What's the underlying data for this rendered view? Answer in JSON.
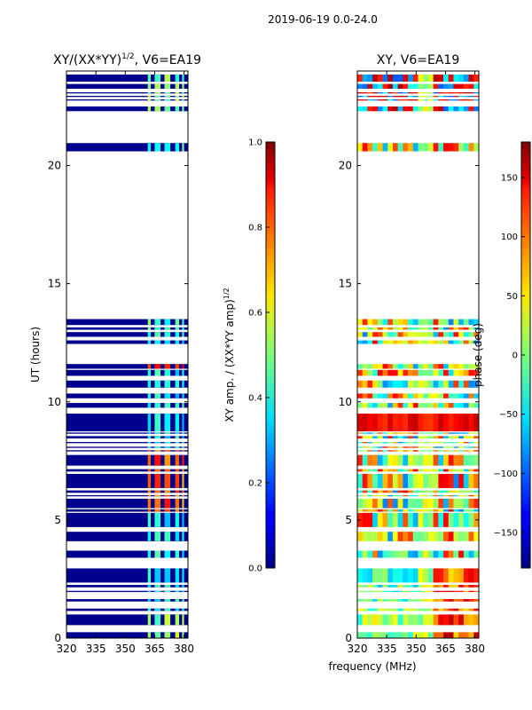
{
  "suptitle": "2019-06-19 0.0-24.0",
  "xlabel_shared": "frequency (MHz)",
  "chart_data": [
    {
      "type": "heatmap",
      "id": "amp",
      "title": "XY/(XX*YY)",
      "title_sup": "1/2",
      "title_suffix": ", V6=EA19",
      "ylabel": "UT (hours)",
      "xlim": [
        320,
        382
      ],
      "ylim": [
        0,
        24
      ],
      "xticks": [
        320,
        335,
        350,
        365,
        380
      ],
      "yticks": [
        0,
        5,
        10,
        15,
        20
      ],
      "data_rows": [
        [
          0.0,
          0.25
        ],
        [
          0.55,
          1.0
        ],
        [
          1.15,
          1.25
        ],
        [
          1.55,
          1.65
        ],
        [
          1.95,
          2.0
        ],
        [
          2.15,
          2.25
        ],
        [
          2.35,
          2.95
        ],
        [
          3.4,
          3.7
        ],
        [
          4.1,
          4.5
        ],
        [
          4.7,
          5.3
        ],
        [
          5.35,
          5.45
        ],
        [
          5.5,
          5.9
        ],
        [
          6.0,
          6.05
        ],
        [
          6.15,
          6.25
        ],
        [
          6.35,
          6.95
        ],
        [
          7.05,
          7.15
        ],
        [
          7.3,
          7.75
        ],
        [
          7.9,
          7.95
        ],
        [
          8.05,
          8.1
        ],
        [
          8.25,
          8.3
        ],
        [
          8.45,
          8.55
        ],
        [
          8.65,
          8.7
        ],
        [
          8.75,
          9.5
        ],
        [
          9.75,
          9.95
        ],
        [
          10.15,
          10.35
        ],
        [
          10.6,
          10.9
        ],
        [
          11.1,
          11.35
        ],
        [
          11.4,
          11.6
        ],
        [
          12.45,
          12.6
        ],
        [
          12.75,
          12.95
        ],
        [
          13.05,
          13.15
        ],
        [
          13.25,
          13.5
        ],
        [
          20.6,
          20.95
        ],
        [
          22.3,
          22.5
        ],
        [
          22.75,
          22.8
        ],
        [
          22.9,
          22.95
        ],
        [
          23.05,
          23.1
        ],
        [
          23.25,
          23.45
        ],
        [
          23.55,
          23.85
        ]
      ],
      "signal_columns": [
        [
          361.5,
          363
        ],
        [
          365,
          368
        ],
        [
          370,
          373
        ],
        [
          375.5,
          377.5
        ],
        [
          379,
          380
        ]
      ],
      "colorbar": {
        "range": [
          0.0,
          1.0
        ],
        "ticks": [
          "0.0",
          "0.2",
          "0.4",
          "0.6",
          "0.8",
          "1.0"
        ],
        "label": "XY amp. / (XX*YY amp)",
        "label_sup": "1/2"
      }
    },
    {
      "type": "heatmap",
      "id": "phase",
      "title": "XY, V6=EA19",
      "xlim": [
        320,
        382
      ],
      "ylim": [
        0,
        24
      ],
      "xticks": [
        320,
        335,
        350,
        365,
        380
      ],
      "yticks": [
        0,
        5,
        10,
        15,
        20
      ],
      "data_rows": [
        [
          0.0,
          0.25
        ],
        [
          0.55,
          1.0
        ],
        [
          1.15,
          1.25
        ],
        [
          1.55,
          1.65
        ],
        [
          1.95,
          2.0
        ],
        [
          2.15,
          2.25
        ],
        [
          2.35,
          2.95
        ],
        [
          3.4,
          3.7
        ],
        [
          4.1,
          4.5
        ],
        [
          4.7,
          5.3
        ],
        [
          5.35,
          5.45
        ],
        [
          5.5,
          5.9
        ],
        [
          6.0,
          6.05
        ],
        [
          6.15,
          6.25
        ],
        [
          6.35,
          6.95
        ],
        [
          7.05,
          7.15
        ],
        [
          7.3,
          7.75
        ],
        [
          7.9,
          7.95
        ],
        [
          8.05,
          8.1
        ],
        [
          8.25,
          8.3
        ],
        [
          8.45,
          8.55
        ],
        [
          8.65,
          8.7
        ],
        [
          8.75,
          9.5
        ],
        [
          9.75,
          9.95
        ],
        [
          10.15,
          10.35
        ],
        [
          10.6,
          10.9
        ],
        [
          11.1,
          11.35
        ],
        [
          11.4,
          11.6
        ],
        [
          12.45,
          12.6
        ],
        [
          12.75,
          12.95
        ],
        [
          13.05,
          13.15
        ],
        [
          13.25,
          13.5
        ],
        [
          20.6,
          20.95
        ],
        [
          22.3,
          22.5
        ],
        [
          22.75,
          22.8
        ],
        [
          22.9,
          22.95
        ],
        [
          23.05,
          23.1
        ],
        [
          23.25,
          23.45
        ],
        [
          23.55,
          23.85
        ]
      ],
      "colorbar": {
        "range": [
          -180,
          180
        ],
        "ticks": [
          "−150",
          "−100",
          "−50",
          "0",
          "50",
          "100",
          "150"
        ],
        "label": "phase (deg)"
      }
    }
  ]
}
